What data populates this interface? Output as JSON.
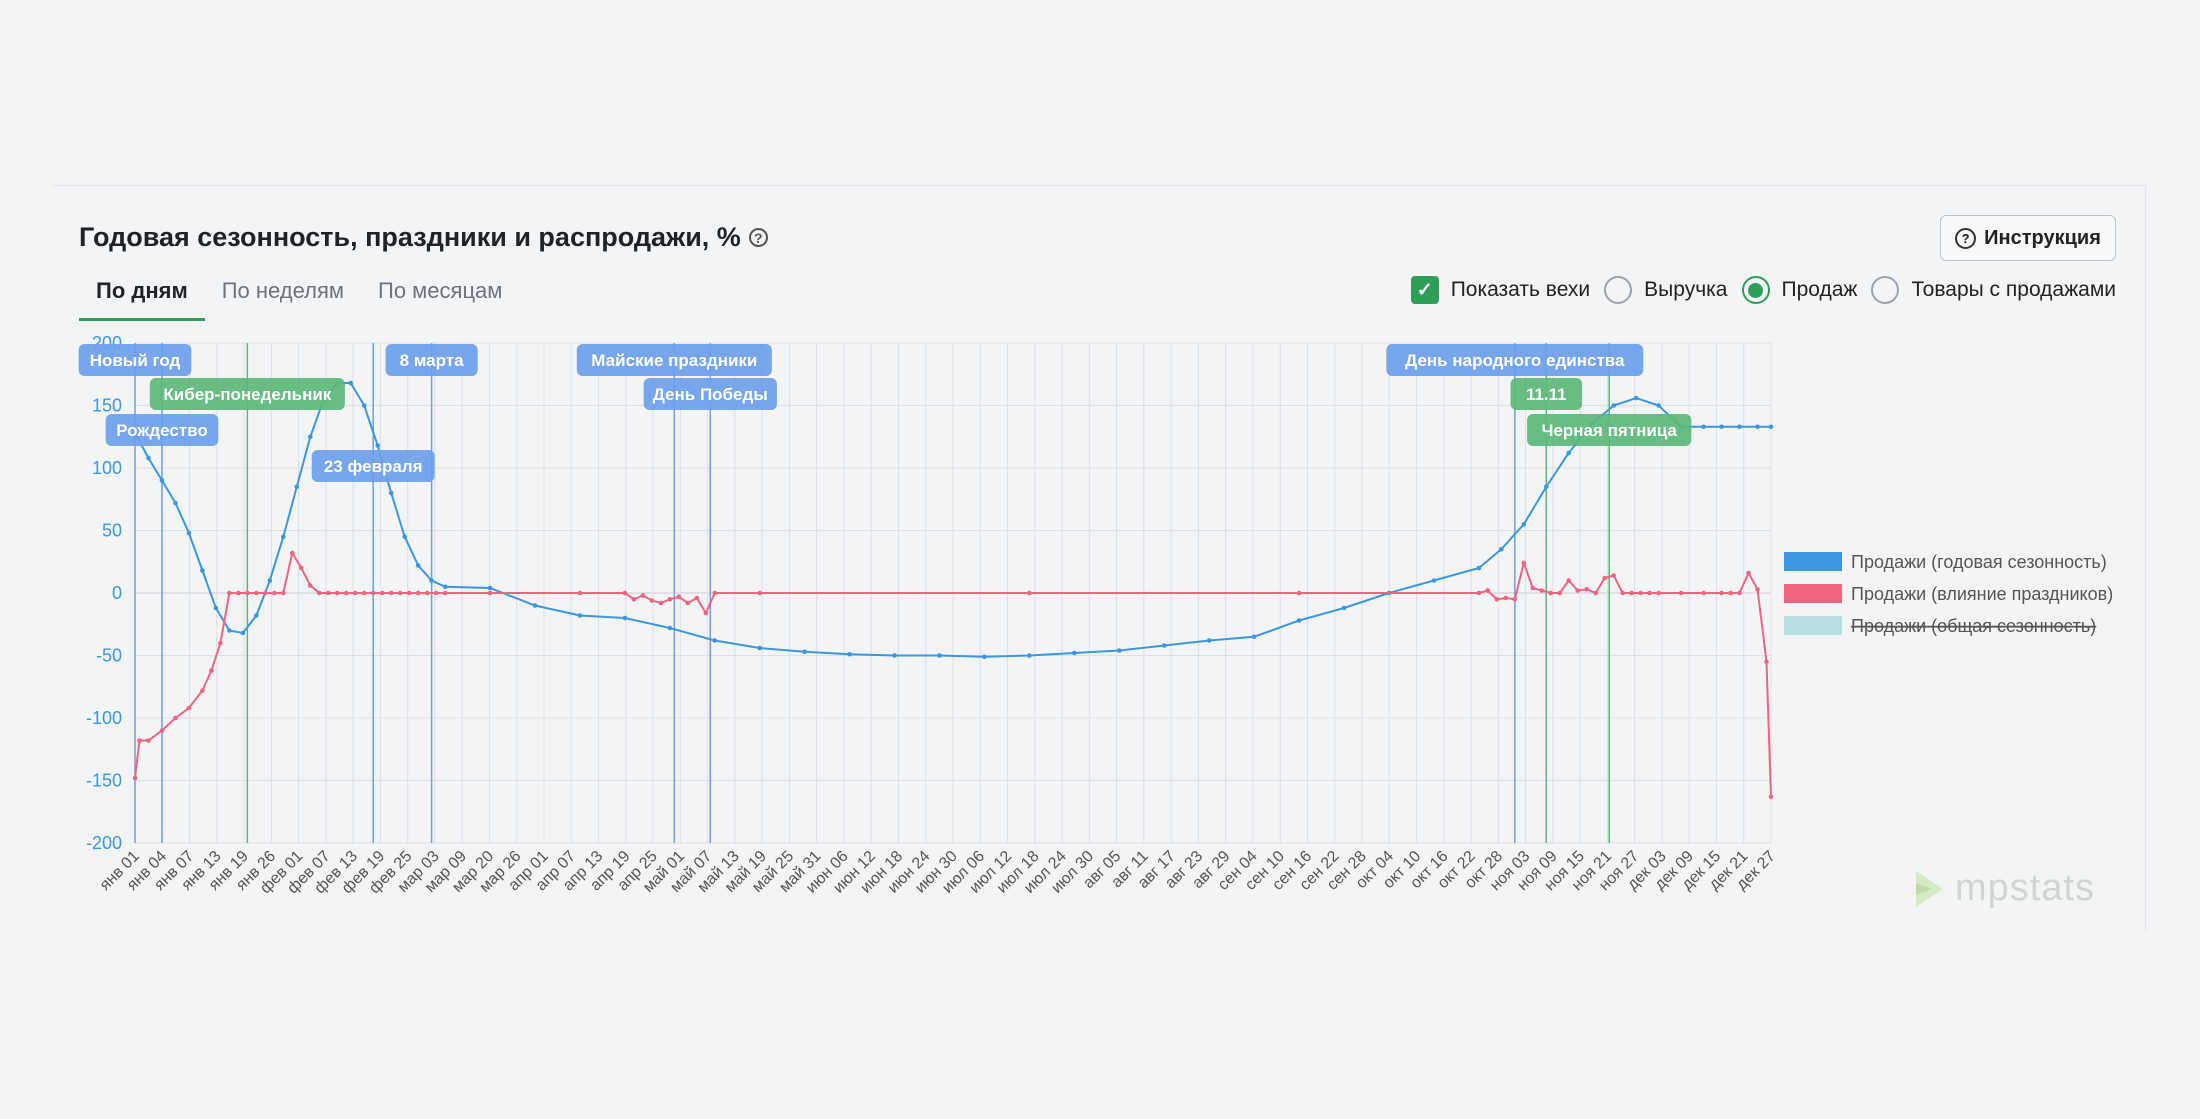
{
  "title": "Годовая сезонность, праздники и распродажи, %",
  "instruction_button": "Инструкция",
  "tabs": [
    "По дням",
    "По неделям",
    "По месяцам"
  ],
  "controls": {
    "show_milestones": "Показать вехи",
    "radio_revenue": "Выручка",
    "radio_sales": "Продаж",
    "radio_goods": "Товары с продажами",
    "selected": "Продаж"
  },
  "logo_text": "mpstats",
  "colors": {
    "blue": "#3b97e3",
    "pink": "#f0647f",
    "teal": "#b7dfe3",
    "milestone_blue": "#6d9eeb",
    "milestone_green": "#5cb777",
    "accent": "#2e9e58"
  },
  "chart_data": {
    "type": "line",
    "x_tick_labels": [
      "янв 01",
      "янв 04",
      "янв 07",
      "янв 13",
      "янв 19",
      "янв 26",
      "фев 01",
      "фев 07",
      "фев 13",
      "фев 19",
      "фев 25",
      "мар 03",
      "мар 09",
      "мар 20",
      "мар 26",
      "апр 01",
      "апр 07",
      "апр 13",
      "апр 19",
      "апр 25",
      "май 01",
      "май 07",
      "май 13",
      "май 19",
      "май 25",
      "май 31",
      "июн 06",
      "июн 12",
      "июн 18",
      "июн 24",
      "июн 30",
      "июл 06",
      "июл 12",
      "июл 18",
      "июл 24",
      "июл 30",
      "авг 05",
      "авг 11",
      "авг 17",
      "авг 23",
      "авг 29",
      "сен 04",
      "сен 10",
      "сен 16",
      "сен 22",
      "сен 28",
      "окт 04",
      "окт 10",
      "окт 16",
      "окт 22",
      "окт 28",
      "ноя 03",
      "ноя 09",
      "ноя 15",
      "ноя 21",
      "ноя 27",
      "дек 03",
      "дек 09",
      "дек 15",
      "дек 21",
      "дек 27"
    ],
    "y_ticks": [
      200,
      150,
      100,
      50,
      0,
      -50,
      -100,
      -150,
      -200
    ],
    "ylim": [
      -200,
      200
    ],
    "series": [
      {
        "name": "Продажи (годовая сезонность)",
        "color": "#3b97e3",
        "x": [
          1,
          4,
          7,
          10,
          13,
          16,
          19,
          22,
          25,
          28,
          31,
          34,
          37,
          40,
          43,
          46,
          49,
          52,
          55,
          58,
          61,
          64,
          67,
          70,
          80,
          90,
          100,
          110,
          120,
          130,
          140,
          150,
          160,
          170,
          180,
          190,
          200,
          210,
          220,
          230,
          240,
          250,
          260,
          270,
          280,
          290,
          300,
          305,
          310,
          315,
          320,
          325,
          330,
          335,
          340,
          345,
          350,
          354,
          358,
          362,
          365
        ],
        "y": [
          128,
          108,
          90,
          72,
          48,
          18,
          -12,
          -30,
          -32,
          -18,
          10,
          45,
          85,
          125,
          155,
          168,
          168,
          150,
          118,
          80,
          45,
          22,
          10,
          5,
          4,
          -10,
          -18,
          -20,
          -28,
          -38,
          -44,
          -47,
          -49,
          -50,
          -50,
          -51,
          -50,
          -48,
          -46,
          -42,
          -38,
          -35,
          -22,
          -12,
          0,
          10,
          20,
          35,
          55,
          85,
          112,
          135,
          150,
          156,
          150,
          133,
          133,
          133,
          133,
          133,
          133
        ]
      },
      {
        "name": "Продажи (влияние праздников)",
        "color": "#f0647f",
        "x": [
          1,
          2,
          4,
          7,
          10,
          13,
          16,
          18,
          20,
          22,
          24,
          26,
          28,
          30,
          32,
          34,
          36,
          38,
          40,
          42,
          44,
          46,
          48,
          50,
          52,
          54,
          56,
          58,
          60,
          62,
          64,
          66,
          68,
          70,
          80,
          100,
          110,
          112,
          114,
          116,
          118,
          120,
          122,
          124,
          126,
          128,
          130,
          140,
          200,
          260,
          300,
          302,
          304,
          306,
          308,
          310,
          312,
          314,
          316,
          318,
          320,
          322,
          324,
          326,
          328,
          330,
          332,
          334,
          336,
          338,
          340,
          345,
          350,
          354,
          356,
          358,
          360,
          362,
          364,
          365
        ],
        "y": [
          -148,
          -118,
          -118,
          -110,
          -100,
          -92,
          -78,
          -62,
          -40,
          0,
          0,
          0,
          0,
          0,
          0,
          0,
          32,
          20,
          6,
          0,
          0,
          0,
          0,
          0,
          0,
          0,
          0,
          0,
          0,
          0,
          0,
          0,
          0,
          0,
          0,
          0,
          0,
          -5,
          -2,
          -6,
          -8,
          -5,
          -3,
          -8,
          -4,
          -16,
          0,
          0,
          0,
          0,
          0,
          2,
          -5,
          -4,
          -5,
          24,
          4,
          2,
          0,
          0,
          10,
          2,
          3,
          0,
          12,
          14,
          0,
          0,
          0,
          0,
          0,
          0,
          0,
          0,
          0,
          0,
          16,
          3,
          -55,
          -163
        ]
      },
      {
        "name": "Продажи (общая сезонность)",
        "color": "#b7dfe3",
        "hidden": true,
        "x": [],
        "y": []
      }
    ],
    "milestones": [
      {
        "label": "Новый год",
        "day": 1,
        "color": "blue",
        "row": 0
      },
      {
        "label": "Рождество",
        "day": 7,
        "color": "blue",
        "row": 2
      },
      {
        "label": "Кибер-понедельник",
        "day": 26,
        "color": "green",
        "row": 1
      },
      {
        "label": "23 февраля",
        "day": 54,
        "color": "blue",
        "row": 3
      },
      {
        "label": "8 марта",
        "day": 67,
        "color": "blue",
        "row": 0
      },
      {
        "label": "Майские праздники",
        "day": 121,
        "color": "blue",
        "row": 0
      },
      {
        "label": "День Победы",
        "day": 129,
        "color": "blue",
        "row": 1
      },
      {
        "label": "День народного единства",
        "day": 308,
        "color": "blue",
        "row": 0
      },
      {
        "label": "11.11",
        "day": 315,
        "color": "green",
        "row": 1
      },
      {
        "label": "Черная пятница",
        "day": 329,
        "color": "green",
        "row": 2
      }
    ]
  }
}
